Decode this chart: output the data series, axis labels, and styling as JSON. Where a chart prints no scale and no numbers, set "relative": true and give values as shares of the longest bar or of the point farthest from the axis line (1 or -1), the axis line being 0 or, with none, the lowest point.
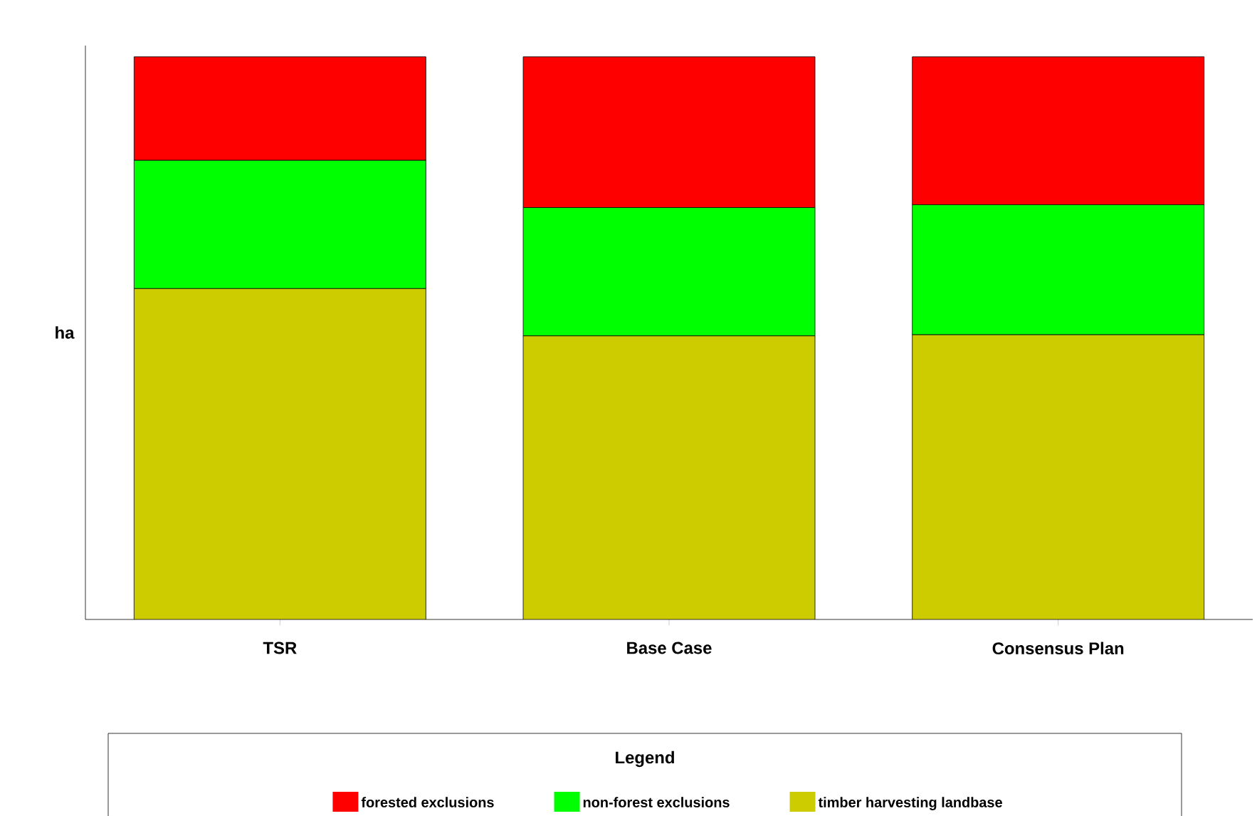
{
  "chart_data": {
    "type": "bar",
    "stacked": true,
    "relative": true,
    "ylabel": "ha",
    "legend_title": "Legend",
    "legend": "bottom",
    "categories": [
      "TSR",
      "Base Case",
      "Consensus Plan"
    ],
    "series": [
      {
        "name": "timber harvesting landbase",
        "color": "#cccc00",
        "values": [
          0.588,
          0.504,
          0.506
        ]
      },
      {
        "name": "non-forest exclusions",
        "color": "#00ff00",
        "values": [
          0.228,
          0.228,
          0.231
        ]
      },
      {
        "name": "forested exclusions",
        "color": "#ff0000",
        "values": [
          0.184,
          0.268,
          0.263
        ]
      }
    ]
  }
}
